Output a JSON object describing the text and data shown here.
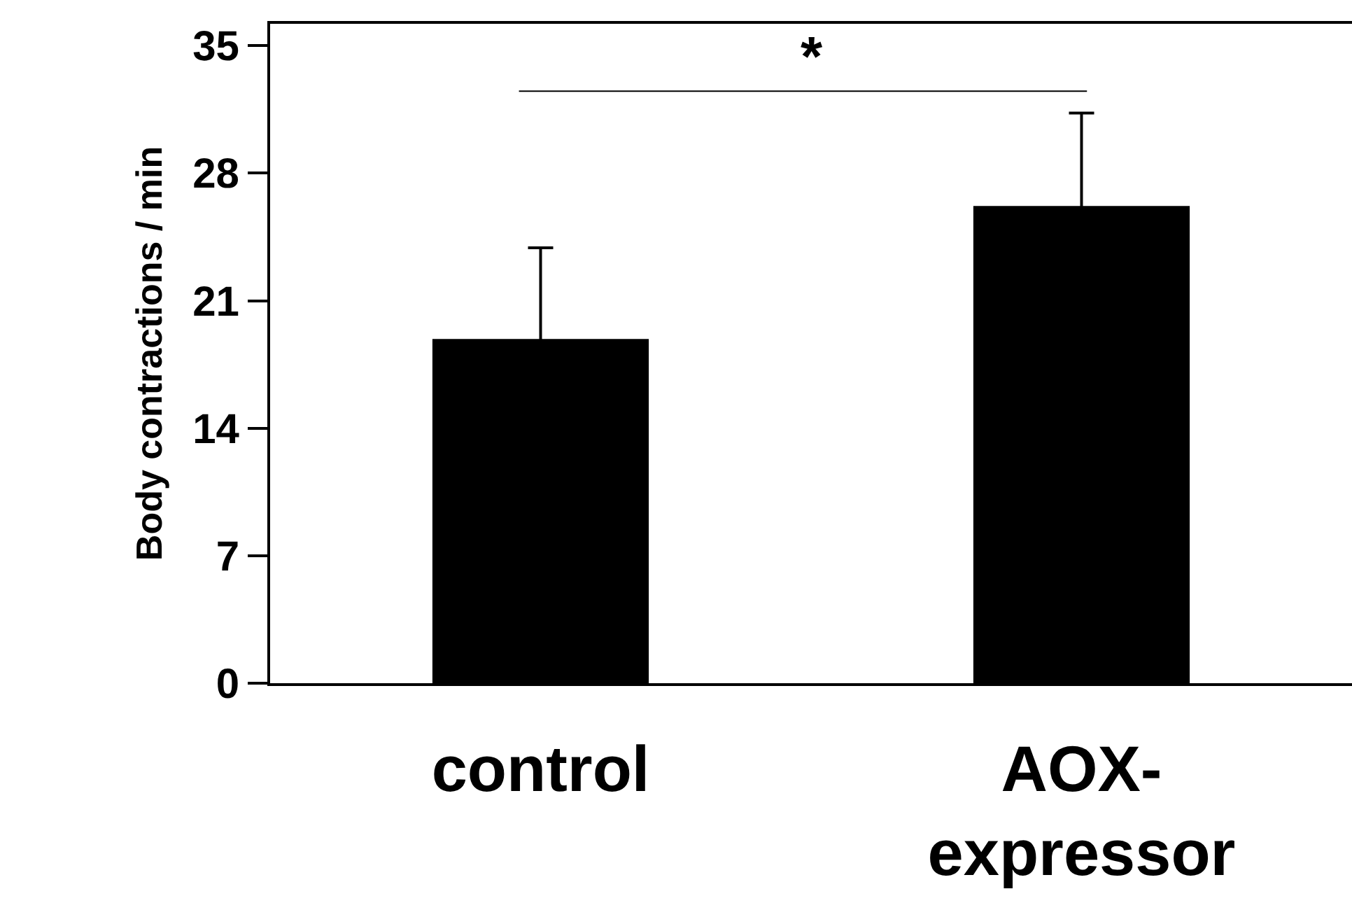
{
  "chart_data": {
    "type": "bar",
    "ylabel": "Body contractions / min",
    "categories": [
      "control",
      "AOX-expressor"
    ],
    "values": [
      18.9,
      26.2
    ],
    "errors": [
      5,
      5.1
    ],
    "color": "#000000",
    "ylim": [
      0,
      36.2
    ],
    "yticks": [
      0,
      7,
      14,
      21,
      28,
      35
    ],
    "grid": false,
    "annotations": [
      "*"
    ]
  }
}
